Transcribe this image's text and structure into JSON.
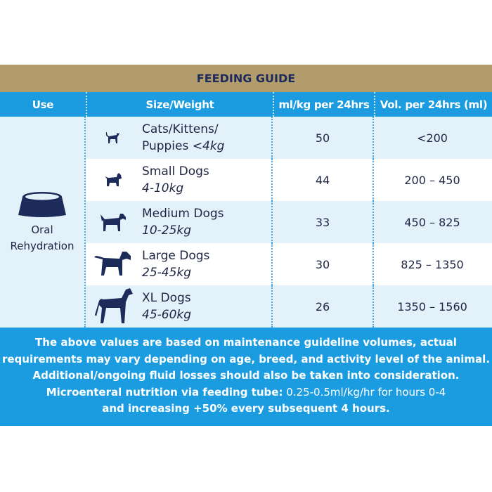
{
  "title": "FEEDING GUIDE",
  "headers": [
    "Use",
    "Size/Weight",
    "ml/kg per 24hrs",
    "Vol. per 24hrs (ml)"
  ],
  "use": {
    "line1": "Oral",
    "line2": "Rehydration",
    "icon": "bowl-icon"
  },
  "rows": [
    {
      "name": "Cats/Kittens/",
      "name2": "Puppies ",
      "weight": "<4kg",
      "icon": "cat-icon",
      "mlkg": "50",
      "vol": "<200"
    },
    {
      "name": "Small Dogs",
      "name2": "",
      "weight": "4-10kg",
      "icon": "small-dog-icon",
      "mlkg": "44",
      "vol": "200 – 450"
    },
    {
      "name": "Medium Dogs",
      "name2": "",
      "weight": "10-25kg",
      "icon": "medium-dog-icon",
      "mlkg": "33",
      "vol": "450 – 825"
    },
    {
      "name": "Large Dogs",
      "name2": "",
      "weight": "25-45kg",
      "icon": "large-dog-icon",
      "mlkg": "30",
      "vol": "825 – 1350"
    },
    {
      "name": "XL Dogs",
      "name2": "",
      "weight": "45-60kg",
      "icon": "xl-dog-icon",
      "mlkg": "26",
      "vol": "1350 – 1560"
    }
  ],
  "footer": {
    "line1": "The above values are based on maintenance guideline volumes, actual",
    "line2": "requirements may vary depending on age, breed, and activity level of the animal.",
    "line3": "Additional/ongoing fluid losses should also be taken into consideration.",
    "bold": "Microenteral nutrition via feeding tube:",
    "line4": " 0.25-0.5ml/kg/hr for hours 0-4",
    "line5": "and increasing +50% every subsequent 4 hours."
  },
  "colors": {
    "gold": "#b39c6c",
    "blue": "#1b9be0",
    "navy": "#1d2b5a",
    "light": "#e3f1fb"
  }
}
